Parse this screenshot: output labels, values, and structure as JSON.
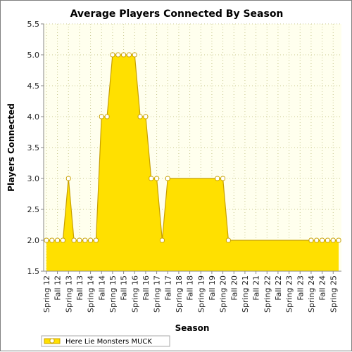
{
  "chart_data": {
    "type": "area",
    "title": "Average Players Connected By Season",
    "xlabel": "Season",
    "ylabel": "Players Connected",
    "ylim": [
      1.5,
      5.5
    ],
    "yticks": [
      "1.5",
      "2.0",
      "2.5",
      "3.0",
      "3.5",
      "4.0",
      "4.5",
      "5.0",
      "5.5"
    ],
    "grid": true,
    "legend_position": "bottom-left",
    "categories": [
      "Spring 12",
      "",
      "Fall 12",
      "",
      "Spring 13",
      "",
      "Fall 13",
      "",
      "Spring 14",
      "",
      "Fall 14",
      "",
      "Spring 15",
      "",
      "Fall 15",
      "",
      "Spring 16",
      "",
      "Fall 16",
      "",
      "Spring 17",
      "",
      "Fall 17",
      "",
      "Spring 18",
      "",
      "Fall 18",
      "",
      "Spring 19",
      "",
      "Fall 19",
      "",
      "Spring 20",
      "",
      "Fall 20",
      "",
      "Spring 21",
      "",
      "Fall 21",
      "",
      "Spring 22",
      "",
      "Fall 22",
      "",
      "Spring 23",
      "",
      "Fall 23",
      "",
      "Spring 24",
      "",
      "Fall 24",
      "",
      "Spring 25",
      ""
    ],
    "series": [
      {
        "name": "Here Lie Monsters MUCK",
        "values": [
          2,
          2,
          2,
          2,
          3,
          2,
          2,
          2,
          2,
          2,
          4,
          4,
          5,
          5,
          5,
          5,
          5,
          4,
          4,
          3,
          3,
          2,
          3,
          null,
          null,
          null,
          null,
          null,
          null,
          null,
          null,
          3,
          3,
          2,
          null,
          null,
          null,
          null,
          null,
          null,
          null,
          null,
          null,
          null,
          null,
          null,
          null,
          null,
          2,
          2,
          2,
          2,
          2,
          2
        ],
        "area_values": [
          2,
          2,
          2,
          2,
          3,
          2,
          2,
          2,
          2,
          2,
          4,
          4,
          5,
          5,
          5,
          5,
          5,
          4,
          4,
          3,
          3,
          2,
          3,
          3,
          3,
          3,
          3,
          3,
          3,
          3,
          3,
          3,
          3,
          2,
          2,
          2,
          2,
          2,
          2,
          2,
          2,
          2,
          2,
          2,
          2,
          2,
          2,
          2,
          2,
          2,
          2,
          2,
          2,
          2
        ]
      }
    ],
    "colors": {
      "fill": "#ffe000",
      "line": "#c8a000",
      "marker_fill": "#ffffff",
      "plot_background": "#ffffee",
      "grid": "#c8c890",
      "axis": "#888888"
    }
  }
}
